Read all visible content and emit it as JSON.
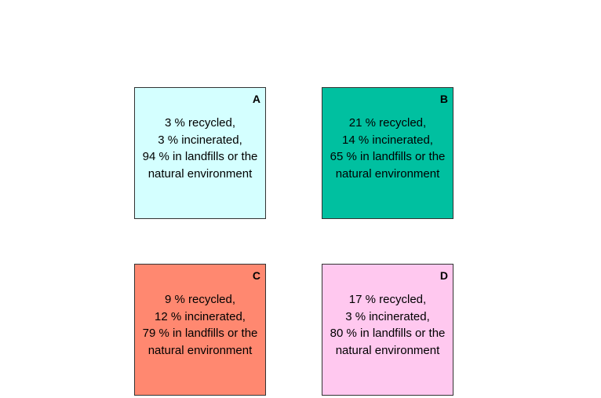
{
  "boxes": [
    {
      "letter": "A",
      "color": "#d4ffff",
      "lines": [
        "3 % recycled,",
        "3 % incinerated,",
        "94 % in landfills or the",
        "natural environment"
      ]
    },
    {
      "letter": "B",
      "color": "#00c0a0",
      "lines": [
        "21 % recycled,",
        "14 % incinerated,",
        "65 % in landfills or the",
        "natural environment"
      ]
    },
    {
      "letter": "C",
      "color": "#ff8870",
      "lines": [
        "9 % recycled,",
        "12 % incinerated,",
        "79 % in landfills or the",
        "natural environment"
      ]
    },
    {
      "letter": "D",
      "color": "#ffc8ef",
      "lines": [
        "17 % recycled,",
        "3 % incinerated,",
        "80 % in landfills or the",
        "natural environment"
      ]
    }
  ]
}
